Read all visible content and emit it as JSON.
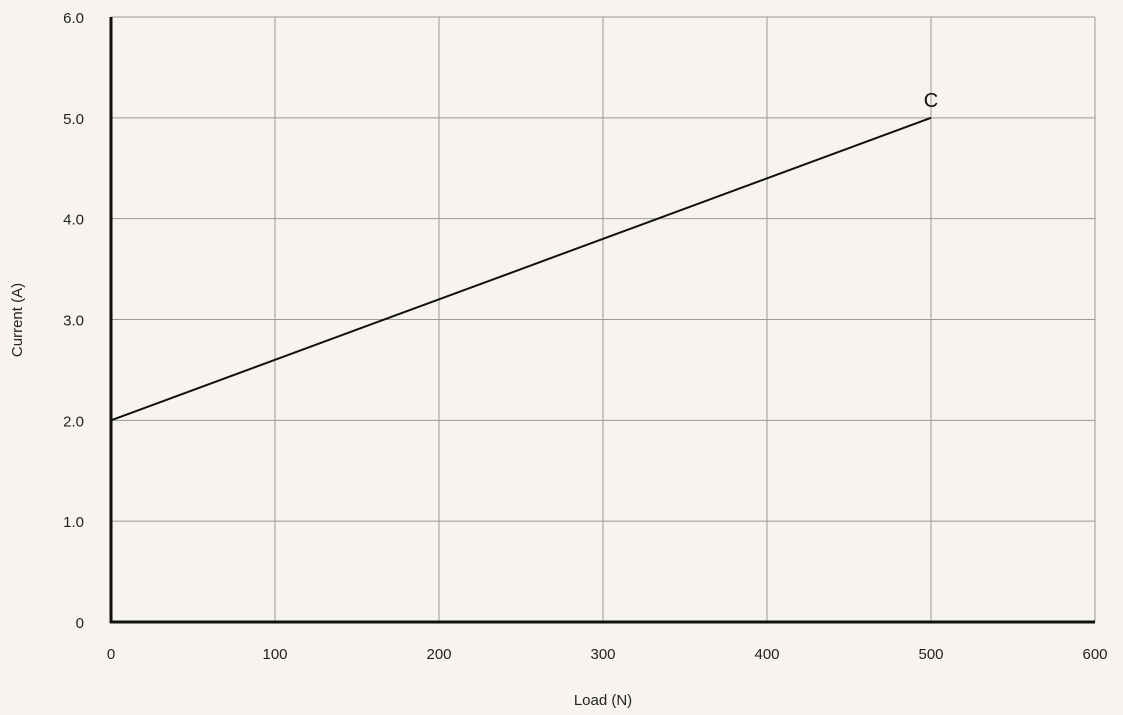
{
  "chart_data": {
    "type": "line",
    "title": "",
    "xlabel": "Load (N)",
    "ylabel": "Current (A)",
    "xlim": [
      0,
      600
    ],
    "ylim": [
      0,
      6.0
    ],
    "x_ticks": [
      0,
      100,
      200,
      300,
      400,
      500,
      600
    ],
    "x_tick_labels": [
      "0",
      "100",
      "200",
      "300",
      "400",
      "500",
      "600"
    ],
    "y_ticks": [
      0,
      1.0,
      2.0,
      3.0,
      4.0,
      5.0,
      6.0
    ],
    "y_tick_labels": [
      "0",
      "1.0",
      "2.0",
      "3.0",
      "4.0",
      "5.0",
      "6.0"
    ],
    "grid": true,
    "series": [
      {
        "x": [
          0,
          500
        ],
        "y": [
          2.0,
          5.0
        ],
        "color": "#111111"
      }
    ],
    "annotations": [
      {
        "text": "C",
        "x": 500,
        "y": 5.0
      }
    ],
    "colors": {
      "background": "#f7f4ef",
      "grid": "#999999",
      "axis": "#111111",
      "line": "#111111"
    }
  }
}
